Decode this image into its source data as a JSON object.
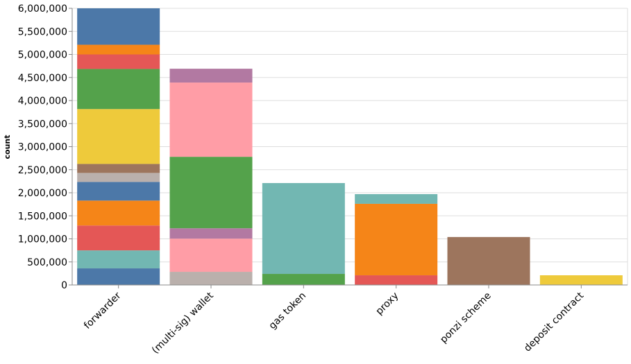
{
  "chart_data": {
    "type": "stacked-bar",
    "y_label": "count",
    "categories": [
      "forwarder",
      "(multi-sig) wallet",
      "gas token",
      "proxy",
      "ponzi scheme",
      "deposit contract"
    ],
    "segments": [
      [
        {
          "value": 360000,
          "color": "#4c78a8"
        },
        {
          "value": 390000,
          "color": "#72b7b2"
        },
        {
          "value": 540000,
          "color": "#e45756"
        },
        {
          "value": 540000,
          "color": "#f58518"
        },
        {
          "value": 405000,
          "color": "#4c78a8"
        },
        {
          "value": 195000,
          "color": "#bab0ac"
        },
        {
          "value": 195000,
          "color": "#9d755d"
        },
        {
          "value": 1190000,
          "color": "#eeca3b"
        },
        {
          "value": 870000,
          "color": "#54a24b"
        },
        {
          "value": 315000,
          "color": "#e45756"
        },
        {
          "value": 210000,
          "color": "#f58518"
        },
        {
          "value": 790000,
          "color": "#4c78a8"
        }
      ],
      [
        {
          "value": 285000,
          "color": "#bab0ac"
        },
        {
          "value": 720000,
          "color": "#ff9da6"
        },
        {
          "value": 225000,
          "color": "#b279a2"
        },
        {
          "value": 1550000,
          "color": "#54a24b"
        },
        {
          "value": 1610000,
          "color": "#ff9da6"
        },
        {
          "value": 300000,
          "color": "#b279a2"
        }
      ],
      [
        {
          "value": 240000,
          "color": "#54a24b"
        },
        {
          "value": 1970000,
          "color": "#72b7b2"
        }
      ],
      [
        {
          "value": 210000,
          "color": "#e45756"
        },
        {
          "value": 1550000,
          "color": "#f58518"
        },
        {
          "value": 210000,
          "color": "#72b7b2"
        }
      ],
      [
        {
          "value": 1040000,
          "color": "#9d755d"
        }
      ],
      [
        {
          "value": 210000,
          "color": "#eeca3b"
        }
      ]
    ],
    "ylim": [
      0,
      6000000
    ],
    "yticks": [
      {
        "value": 0,
        "label": "0"
      },
      {
        "value": 500000,
        "label": "500,000"
      },
      {
        "value": 1000000,
        "label": "1,000,000"
      },
      {
        "value": 1500000,
        "label": "1,500,000"
      },
      {
        "value": 2000000,
        "label": "2,000,000"
      },
      {
        "value": 2500000,
        "label": "2,500,000"
      },
      {
        "value": 3000000,
        "label": "3,000,000"
      },
      {
        "value": 3500000,
        "label": "3,500,000"
      },
      {
        "value": 4000000,
        "label": "4,000,000"
      },
      {
        "value": 4500000,
        "label": "4,500,000"
      },
      {
        "value": 5000000,
        "label": "5,000,000"
      },
      {
        "value": 5500000,
        "label": "5,500,000"
      },
      {
        "value": 6000000,
        "label": "6,000,000"
      }
    ],
    "grid": true
  }
}
